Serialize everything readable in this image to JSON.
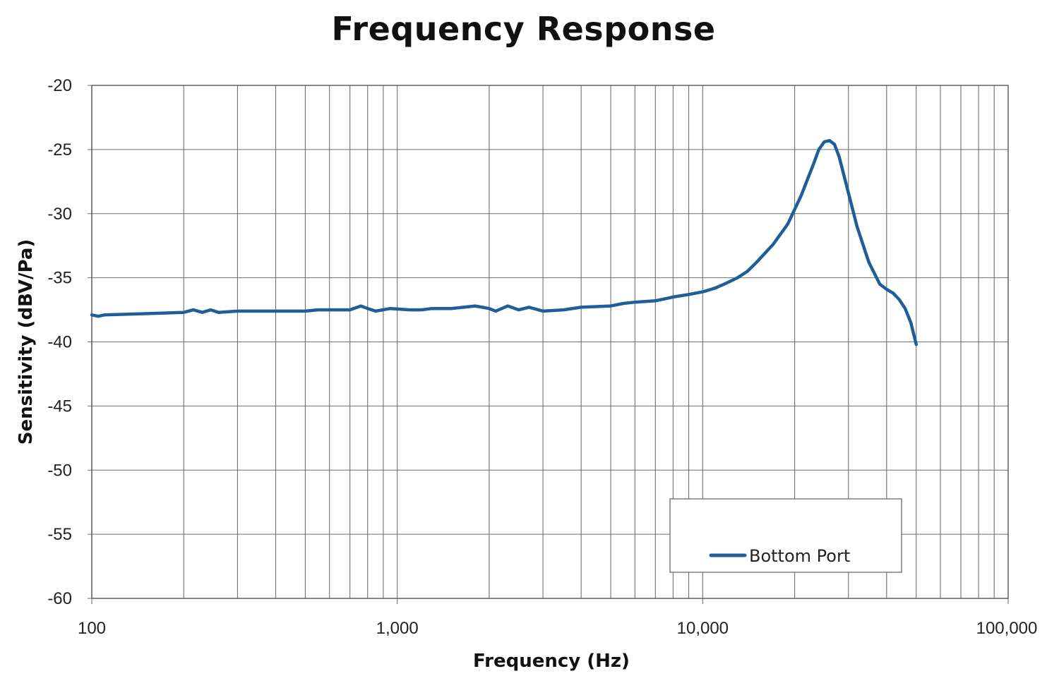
{
  "chart_data": {
    "type": "line",
    "title": "Frequency Response",
    "xlabel": "Frequency (Hz)",
    "ylabel": "Sensitivity (dBV/Pa)",
    "xscale": "log",
    "xlim": [
      100,
      100000
    ],
    "ylim": [
      -60,
      -20
    ],
    "x_ticks": [
      100,
      1000,
      10000,
      100000
    ],
    "x_tick_labels": [
      "100",
      "1,000",
      "10,000",
      "100,000"
    ],
    "y_ticks": [
      -20,
      -25,
      -30,
      -35,
      -40,
      -45,
      -50,
      -55,
      -60
    ],
    "y_tick_labels": [
      "-20",
      "-25",
      "-30",
      "-35",
      "-40",
      "-45",
      "-50",
      "-55",
      "-60"
    ],
    "grid": true,
    "legend": {
      "position": "bottom-right"
    },
    "series": [
      {
        "name": "Bottom Port",
        "color": "#1f5f99",
        "x": [
          100,
          105,
          110,
          150,
          200,
          215,
          230,
          245,
          260,
          300,
          400,
          500,
          550,
          700,
          760,
          800,
          850,
          950,
          1100,
          1200,
          1300,
          1500,
          1800,
          2000,
          2100,
          2300,
          2500,
          2700,
          3000,
          3500,
          4000,
          5000,
          5500,
          6000,
          7000,
          8000,
          9000,
          10000,
          11000,
          12000,
          13000,
          14000,
          15000,
          17000,
          19000,
          21000,
          23000,
          24000,
          25000,
          26000,
          27000,
          28000,
          30000,
          32000,
          35000,
          38000,
          40000,
          42000,
          44000,
          46000,
          48000,
          50000
        ],
        "values": [
          -37.9,
          -38.0,
          -37.9,
          -37.8,
          -37.7,
          -37.5,
          -37.7,
          -37.5,
          -37.7,
          -37.6,
          -37.6,
          -37.6,
          -37.5,
          -37.5,
          -37.2,
          -37.4,
          -37.6,
          -37.4,
          -37.5,
          -37.5,
          -37.4,
          -37.4,
          -37.2,
          -37.4,
          -37.6,
          -37.2,
          -37.5,
          -37.3,
          -37.6,
          -37.5,
          -37.3,
          -37.2,
          -37.0,
          -36.9,
          -36.8,
          -36.5,
          -36.3,
          -36.1,
          -35.8,
          -35.4,
          -35.0,
          -34.5,
          -33.8,
          -32.4,
          -30.8,
          -28.6,
          -26.2,
          -25.0,
          -24.4,
          -24.3,
          -24.6,
          -25.6,
          -28.4,
          -31.0,
          -33.8,
          -35.5,
          -35.9,
          -36.2,
          -36.7,
          -37.4,
          -38.5,
          -40.2
        ]
      }
    ]
  }
}
